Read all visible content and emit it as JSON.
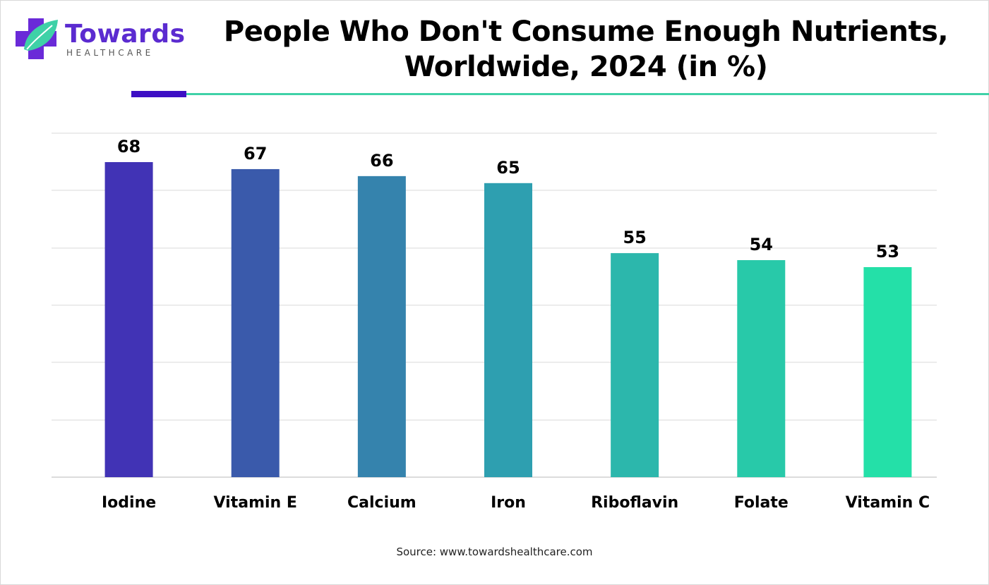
{
  "brand": {
    "name": "Towards",
    "tagline": "HEALTHCARE",
    "colors": {
      "primary": "#5b2bd0",
      "accent": "#3fd1a7"
    }
  },
  "header": {
    "title_line1": "People Who Don't Consume Enough Nutrients,",
    "title_line2": "Worldwide, 2024 (in %)"
  },
  "chart_data": {
    "type": "bar",
    "title": "People Who Don't Consume Enough Nutrients, Worldwide, 2024 (in %)",
    "categories": [
      "Iodine",
      "Vitamin E",
      "Calcium",
      "Iron",
      "Riboflavin",
      "Folate",
      "Vitamin C"
    ],
    "values": [
      68,
      67,
      66,
      65,
      55,
      54,
      53
    ],
    "colors": [
      "#4133b5",
      "#3a5aab",
      "#3583ad",
      "#2e9fb0",
      "#2cb7ac",
      "#28c9a9",
      "#24e0a8"
    ],
    "xlabel": "",
    "ylabel": "",
    "grid": true
  },
  "footer": {
    "source": "Source: www.towardshealthcare.com"
  }
}
